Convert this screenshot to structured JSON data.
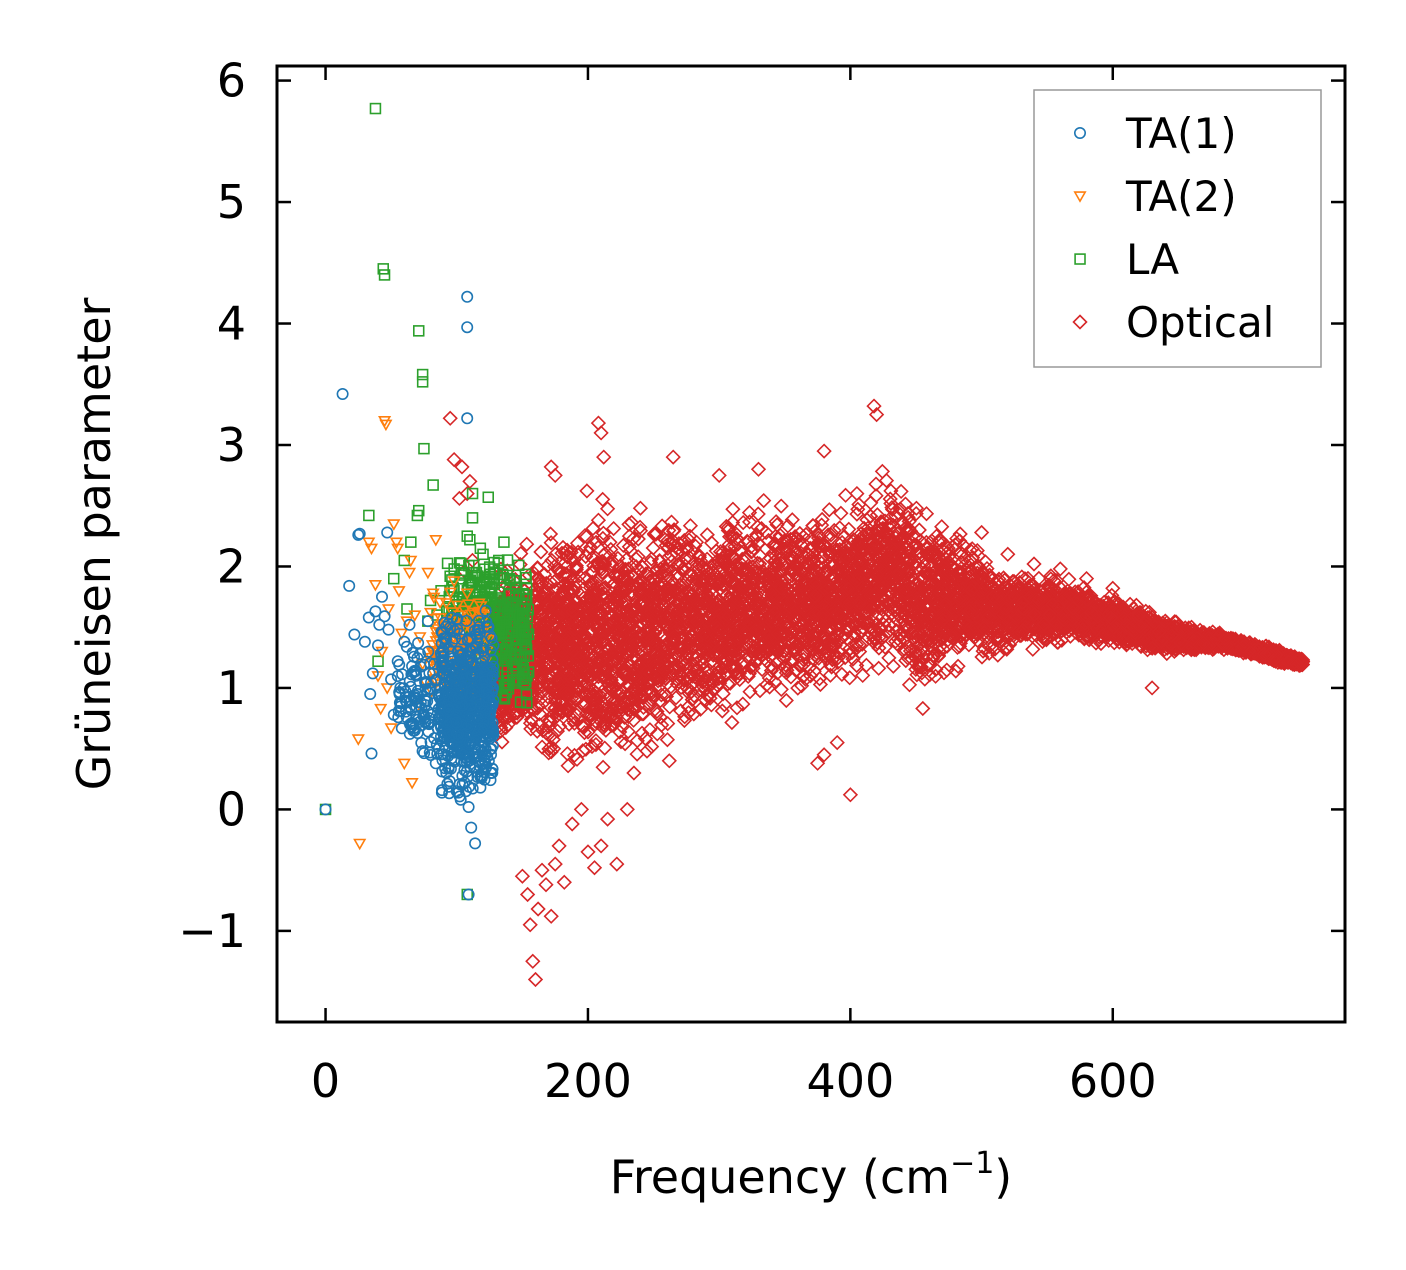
{
  "chart_data": {
    "type": "scatter",
    "title": "",
    "xlabel": "Frequency (cm",
    "xlabel_sup": "−1",
    "xlabel_end": ")",
    "ylabel": "Grüneisen parameter",
    "xlim": [
      -37,
      777
    ],
    "ylim": [
      -1.75,
      6.12
    ],
    "xticks": [
      0,
      200,
      400,
      600
    ],
    "xtick_labels": [
      "0",
      "200",
      "400",
      "600"
    ],
    "yticks": [
      -1,
      0,
      1,
      2,
      3,
      4,
      5,
      6
    ],
    "ytick_labels": [
      "−1",
      "0",
      "1",
      "2",
      "3",
      "4",
      "5",
      "6"
    ],
    "grid": false,
    "legend_position": "top-right",
    "series": [
      {
        "name": "TA(1)",
        "marker": "circle",
        "color": "#1f77b4",
        "points": [
          [
            0,
            0
          ],
          [
            13,
            3.42
          ],
          [
            18,
            1.84
          ],
          [
            22,
            1.44
          ],
          [
            25,
            2.26
          ],
          [
            26,
            2.27
          ],
          [
            30,
            1.38
          ],
          [
            33,
            1.58
          ],
          [
            34,
            0.95
          ],
          [
            35,
            0.46
          ],
          [
            36,
            1.12
          ],
          [
            38,
            1.63
          ],
          [
            40,
            1.35
          ],
          [
            41,
            1.52
          ],
          [
            43,
            1.75
          ],
          [
            45,
            1.59
          ],
          [
            47,
            2.28
          ],
          [
            48,
            1.48
          ],
          [
            50,
            1.07
          ],
          [
            52,
            0.78
          ],
          [
            55,
            1.22
          ],
          [
            57,
            1.0
          ],
          [
            60,
            1.38
          ],
          [
            62,
            0.88
          ],
          [
            64,
            1.52
          ],
          [
            66,
            1.18
          ],
          [
            68,
            0.65
          ],
          [
            70,
            0.95
          ],
          [
            72,
            1.28
          ],
          [
            74,
            0.48
          ],
          [
            76,
            0.86
          ],
          [
            78,
            1.55
          ],
          [
            80,
            0.72
          ],
          [
            82,
            1.12
          ],
          [
            84,
            0.38
          ],
          [
            86,
            0.94
          ],
          [
            88,
            0.6
          ],
          [
            90,
            1.3
          ],
          [
            92,
            0.3
          ],
          [
            94,
            0.82
          ],
          [
            96,
            0.42
          ],
          [
            98,
            1.05
          ],
          [
            100,
            0.15
          ],
          [
            101,
            0.62
          ],
          [
            103,
            0.08
          ],
          [
            104,
            1.4
          ],
          [
            105,
            0.45
          ],
          [
            106,
            0.22
          ],
          [
            107,
            0.95
          ],
          [
            108,
            4.22
          ],
          [
            108,
            3.97
          ],
          [
            108,
            3.22
          ],
          [
            109,
            0.02
          ],
          [
            109,
            -0.7
          ],
          [
            110,
            0.55
          ],
          [
            111,
            -0.15
          ],
          [
            112,
            1.1
          ],
          [
            113,
            0.35
          ],
          [
            114,
            -0.28
          ],
          [
            116,
            0.75
          ],
          [
            118,
            0.18
          ],
          [
            120,
            1.22
          ],
          [
            122,
            0.5
          ],
          [
            124,
            0.92
          ],
          [
            126,
            0.3
          ],
          [
            128,
            1.35
          ]
        ],
        "clusters": [
          {
            "x": [
              88,
              128
            ],
            "y": [
              0.05,
              1.65
            ],
            "n": 550
          },
          {
            "x": [
              55,
              105
            ],
            "y": [
              0.4,
              1.4
            ],
            "n": 160
          }
        ]
      },
      {
        "name": "TA(2)",
        "marker": "triangle-down",
        "color": "#ff7f0e",
        "points": [
          [
            25,
            0.58
          ],
          [
            26,
            -0.28
          ],
          [
            33,
            2.2
          ],
          [
            35,
            2.15
          ],
          [
            38,
            1.85
          ],
          [
            40,
            1.1
          ],
          [
            42,
            0.83
          ],
          [
            43,
            1.3
          ],
          [
            45,
            3.2
          ],
          [
            46,
            3.17
          ],
          [
            47,
            1.0
          ],
          [
            48,
            1.65
          ],
          [
            50,
            0.67
          ],
          [
            52,
            2.35
          ],
          [
            54,
            2.2
          ],
          [
            55,
            2.15
          ],
          [
            56,
            1.8
          ],
          [
            58,
            1.45
          ],
          [
            60,
            0.38
          ],
          [
            62,
            1.55
          ],
          [
            64,
            1.95
          ],
          [
            65,
            2.05
          ],
          [
            66,
            0.22
          ],
          [
            68,
            1.6
          ],
          [
            70,
            0.85
          ],
          [
            72,
            1.42
          ],
          [
            74,
            1.2
          ],
          [
            76,
            1.05
          ],
          [
            78,
            1.95
          ],
          [
            80,
            1.62
          ],
          [
            82,
            1.78
          ],
          [
            84,
            2.22
          ],
          [
            86,
            1.3
          ],
          [
            88,
            1.45
          ],
          [
            90,
            1.0
          ],
          [
            92,
            1.7
          ],
          [
            95,
            1.55
          ],
          [
            98,
            1.88
          ],
          [
            102,
            1.6
          ],
          [
            105,
            1.35
          ],
          [
            108,
            1.78
          ],
          [
            112,
            1.48
          ],
          [
            116,
            1.62
          ],
          [
            120,
            1.4
          ]
        ],
        "clusters": [
          {
            "x": [
              80,
              125
            ],
            "y": [
              0.9,
              1.8
            ],
            "n": 140
          }
        ]
      },
      {
        "name": "LA",
        "marker": "square",
        "color": "#2ca02c",
        "points": [
          [
            0,
            0
          ],
          [
            33,
            2.42
          ],
          [
            38,
            5.77
          ],
          [
            40,
            1.22
          ],
          [
            44,
            4.45
          ],
          [
            45,
            4.4
          ],
          [
            52,
            1.9
          ],
          [
            60,
            2.05
          ],
          [
            62,
            1.65
          ],
          [
            65,
            2.2
          ],
          [
            70,
            2.42
          ],
          [
            71,
            2.46
          ],
          [
            71,
            3.94
          ],
          [
            74,
            3.58
          ],
          [
            74,
            3.52
          ],
          [
            75,
            2.97
          ],
          [
            78,
            1.55
          ],
          [
            80,
            1.72
          ],
          [
            82,
            2.67
          ],
          [
            85,
            1.6
          ],
          [
            88,
            1.8
          ],
          [
            90,
            1.45
          ],
          [
            95,
            1.92
          ],
          [
            98,
            1.98
          ],
          [
            105,
            1.75
          ],
          [
            108,
            -0.7
          ],
          [
            108,
            2.25
          ],
          [
            110,
            2.22
          ],
          [
            112,
            2.6
          ],
          [
            112,
            2.4
          ],
          [
            115,
            1.95
          ],
          [
            118,
            2.15
          ],
          [
            120,
            2.1
          ],
          [
            124,
            2.57
          ],
          [
            128,
            1.98
          ],
          [
            132,
            2.05
          ],
          [
            136,
            2.2
          ],
          [
            140,
            1.9
          ],
          [
            145,
            1.75
          ],
          [
            150,
            1.6
          ]
        ],
        "clusters": [
          {
            "x": [
              110,
              155
            ],
            "y": [
              0.8,
              2.1
            ],
            "n": 320
          },
          {
            "x": [
              92,
              128
            ],
            "y": [
              1.3,
              2.1
            ],
            "n": 90
          }
        ]
      },
      {
        "name": "Optical",
        "marker": "diamond",
        "color": "#d62728",
        "points": [
          [
            95,
            3.22
          ],
          [
            98,
            2.88
          ],
          [
            102,
            2.56
          ],
          [
            104,
            2.82
          ],
          [
            106,
            1.96
          ],
          [
            108,
            2.6
          ],
          [
            110,
            2.7
          ],
          [
            112,
            2.05
          ],
          [
            150,
            -0.55
          ],
          [
            154,
            -0.7
          ],
          [
            156,
            -0.95
          ],
          [
            158,
            -1.25
          ],
          [
            160,
            -1.4
          ],
          [
            162,
            -0.82
          ],
          [
            165,
            -0.5
          ],
          [
            168,
            -0.62
          ],
          [
            172,
            -0.88
          ],
          [
            175,
            -0.45
          ],
          [
            178,
            -0.3
          ],
          [
            182,
            -0.6
          ],
          [
            188,
            -0.12
          ],
          [
            195,
            0.0
          ],
          [
            200,
            -0.35
          ],
          [
            205,
            -0.48
          ],
          [
            210,
            -0.3
          ],
          [
            215,
            -0.08
          ],
          [
            222,
            -0.45
          ],
          [
            230,
            0.0
          ],
          [
            235,
            0.3
          ],
          [
            245,
            0.48
          ],
          [
            262,
            0.4
          ],
          [
            375,
            0.38
          ],
          [
            380,
            0.45
          ],
          [
            390,
            0.55
          ],
          [
            400,
            0.12
          ],
          [
            418,
            3.32
          ],
          [
            420,
            3.25
          ],
          [
            405,
            2.6
          ],
          [
            380,
            2.95
          ],
          [
            330,
            2.8
          ],
          [
            300,
            2.75
          ],
          [
            265,
            2.9
          ],
          [
            240,
            2.48
          ],
          [
            208,
            3.18
          ],
          [
            210,
            3.1
          ],
          [
            212,
            2.9
          ],
          [
            172,
            2.82
          ],
          [
            175,
            2.75
          ],
          [
            500,
            2.28
          ],
          [
            520,
            2.1
          ],
          [
            540,
            2.02
          ],
          [
            560,
            1.98
          ],
          [
            580,
            1.9
          ],
          [
            600,
            1.82
          ],
          [
            620,
            1.6
          ],
          [
            630,
            1.0
          ],
          [
            640,
            1.55
          ],
          [
            660,
            1.5
          ],
          [
            680,
            1.44
          ],
          [
            700,
            1.38
          ],
          [
            720,
            1.28
          ],
          [
            740,
            1.2
          ]
        ],
        "envelope": {
          "x": [
            130,
            170,
            210,
            250,
            290,
            330,
            370,
            410,
            430,
            450,
            480,
            510,
            540,
            570,
            600,
            630,
            660,
            690,
            720,
            745
          ],
          "upper": [
            2.05,
            2.45,
            2.75,
            2.6,
            2.55,
            2.65,
            2.55,
            2.65,
            3.0,
            2.65,
            2.45,
            2.1,
            2.0,
            1.92,
            1.82,
            1.65,
            1.52,
            1.44,
            1.35,
            1.25
          ],
          "lower": [
            0.45,
            0.2,
            -0.05,
            0.3,
            0.55,
            0.75,
            0.85,
            0.95,
            1.1,
            0.7,
            1.05,
            1.2,
            1.3,
            1.3,
            1.32,
            1.25,
            1.28,
            1.3,
            1.2,
            1.16
          ],
          "n": 6500
        }
      }
    ]
  }
}
